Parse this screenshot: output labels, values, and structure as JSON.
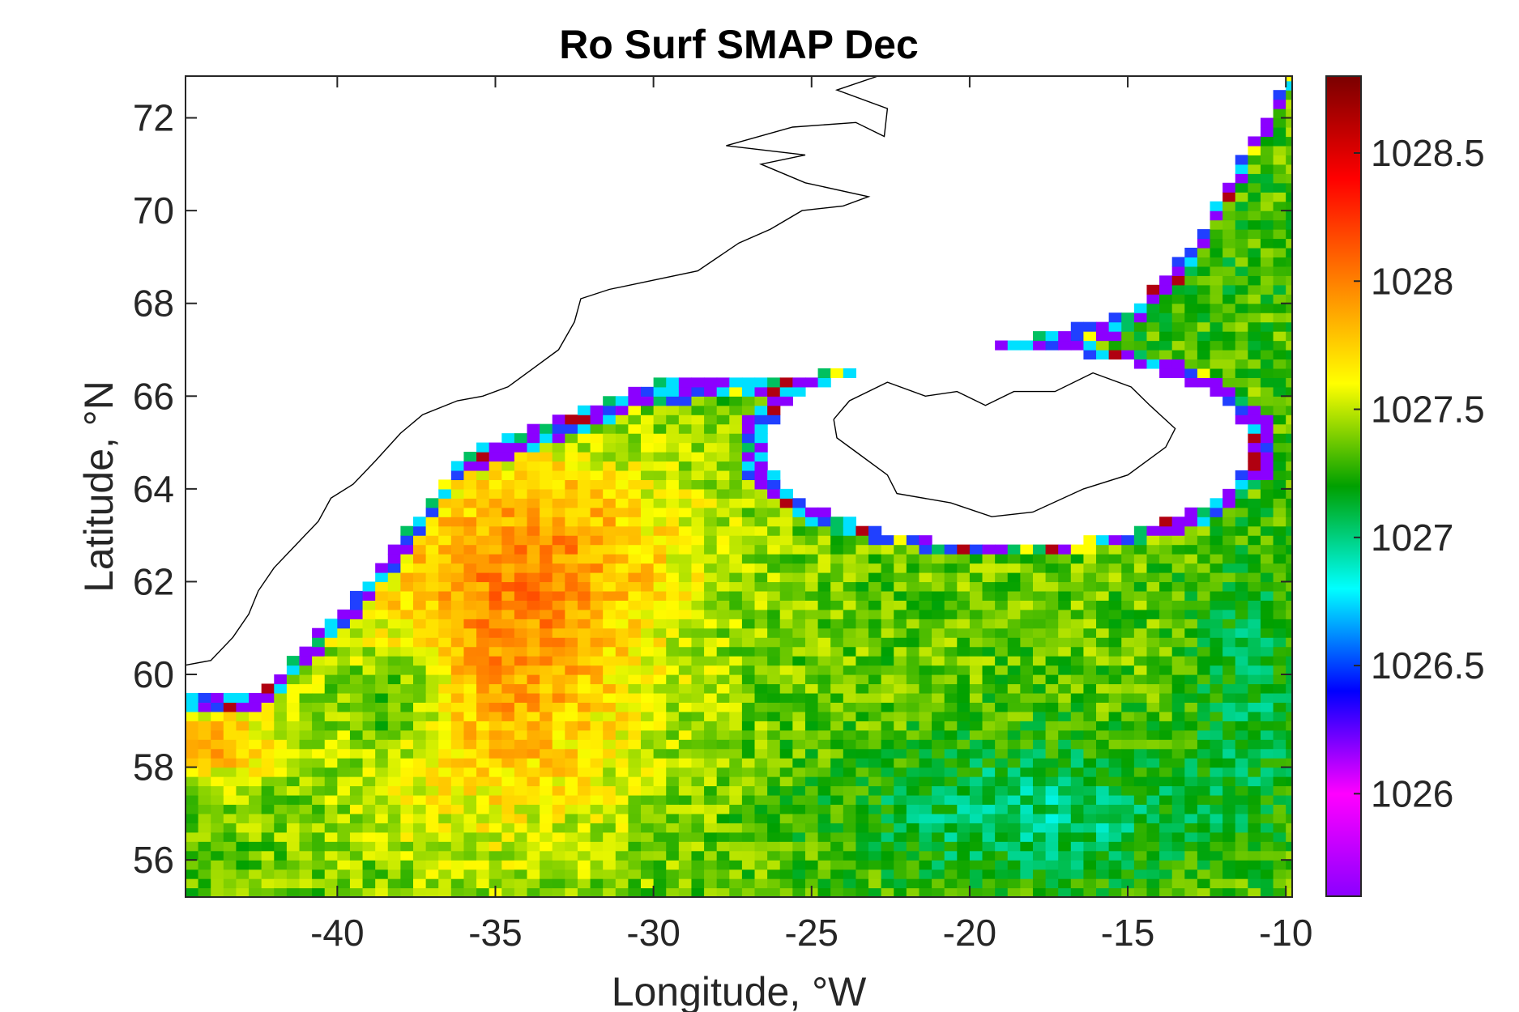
{
  "chart_data": {
    "type": "heatmap",
    "title": "Ro Surf SMAP Dec",
    "xlabel": "Longitude, °W",
    "ylabel": "Latitude, °N",
    "xlim": [
      -44.8,
      -9.8
    ],
    "ylim": [
      55.2,
      72.9
    ],
    "xticks": [
      -40,
      -35,
      -30,
      -25,
      -20,
      -15,
      -10
    ],
    "xtick_labels": [
      "-40",
      "-35",
      "-30",
      "-25",
      "-20",
      "-15",
      "-10"
    ],
    "yticks": [
      56,
      58,
      60,
      62,
      64,
      66,
      68,
      70,
      72
    ],
    "ytick_labels": [
      "56",
      "58",
      "60",
      "62",
      "64",
      "66",
      "68",
      "70",
      "72"
    ],
    "colorbar": {
      "range": [
        1025.6,
        1028.8
      ],
      "ticks": [
        1026,
        1026.5,
        1027,
        1027.5,
        1028,
        1028.5
      ],
      "tick_labels": [
        "1026",
        "1026.5",
        "1027",
        "1027.5",
        "1028",
        "1028.5"
      ],
      "colormap": [
        "#8B00FF",
        "#FF00FF",
        "#0000FF",
        "#00FFFF",
        "#00A000",
        "#FFFF00",
        "#FF8000",
        "#FF0000",
        "#7A0000"
      ]
    },
    "grid": false,
    "background": "#ffffff",
    "coastline_color": "#000000"
  }
}
